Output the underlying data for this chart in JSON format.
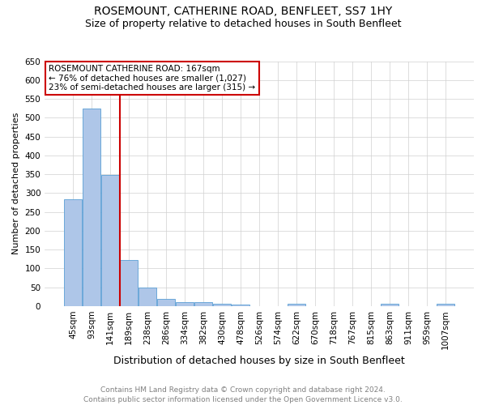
{
  "title": "ROSEMOUNT, CATHERINE ROAD, BENFLEET, SS7 1HY",
  "subtitle": "Size of property relative to detached houses in South Benfleet",
  "xlabel": "Distribution of detached houses by size in South Benfleet",
  "ylabel": "Number of detached properties",
  "bar_color": "#aec6e8",
  "bar_edge_color": "#5a9fd4",
  "background_color": "#ffffff",
  "grid_color": "#d0d0d0",
  "annotation_box_color": "#cc0000",
  "vline_color": "#cc0000",
  "categories": [
    "45sqm",
    "93sqm",
    "141sqm",
    "189sqm",
    "238sqm",
    "286sqm",
    "334sqm",
    "382sqm",
    "430sqm",
    "478sqm",
    "526sqm",
    "574sqm",
    "622sqm",
    "670sqm",
    "718sqm",
    "767sqm",
    "815sqm",
    "863sqm",
    "911sqm",
    "959sqm",
    "1007sqm"
  ],
  "values": [
    283,
    524,
    348,
    123,
    49,
    18,
    10,
    10,
    6,
    4,
    0,
    0,
    5,
    0,
    0,
    0,
    0,
    5,
    0,
    0,
    5
  ],
  "ylim": [
    0,
    650
  ],
  "yticks": [
    0,
    50,
    100,
    150,
    200,
    250,
    300,
    350,
    400,
    450,
    500,
    550,
    600,
    650
  ],
  "vline_x": 2.52,
  "annotation_line1": "ROSEMOUNT CATHERINE ROAD: 167sqm",
  "annotation_line2": "← 76% of detached houses are smaller (1,027)",
  "annotation_line3": "23% of semi-detached houses are larger (315) →",
  "footer_text": "Contains HM Land Registry data © Crown copyright and database right 2024.\nContains public sector information licensed under the Open Government Licence v3.0.",
  "title_fontsize": 10,
  "subtitle_fontsize": 9,
  "xlabel_fontsize": 9,
  "ylabel_fontsize": 8,
  "tick_fontsize": 7.5,
  "annotation_fontsize": 7.5,
  "footer_fontsize": 6.5
}
